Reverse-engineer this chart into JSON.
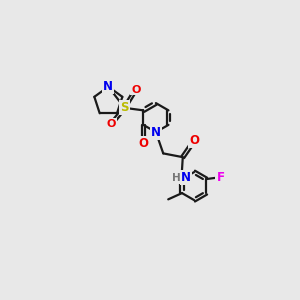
{
  "background_color": "#e8e8e8",
  "bond_color": "#1a1a1a",
  "atom_colors": {
    "N": "#0000ee",
    "O": "#ee0000",
    "S": "#bbbb00",
    "F": "#ee00ee",
    "H": "#777777",
    "C": "#1a1a1a"
  },
  "figsize": [
    3.0,
    3.0
  ],
  "dpi": 100
}
